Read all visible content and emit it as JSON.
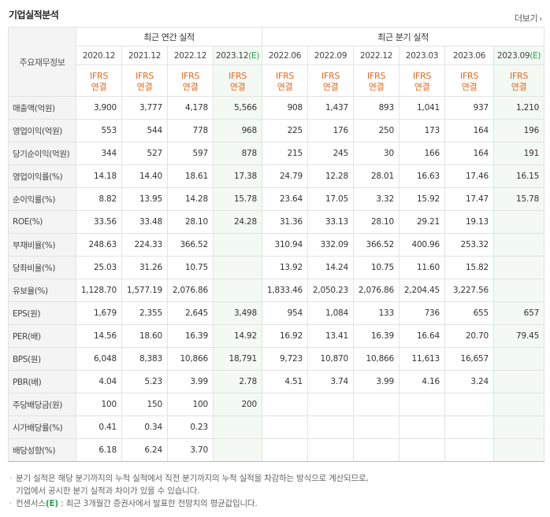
{
  "header": {
    "title": "기업실적분석",
    "more_label": "더보기"
  },
  "table": {
    "corner_label": "주요재무정보",
    "groups": {
      "annual": "최근 연간 실적",
      "quarterly": "최근 분기 실적"
    },
    "periods": [
      {
        "label": "2020.12",
        "est": ""
      },
      {
        "label": "2021.12",
        "est": ""
      },
      {
        "label": "2022.12",
        "est": ""
      },
      {
        "label": "2023.12",
        "est": "(E)"
      },
      {
        "label": "2022.06",
        "est": ""
      },
      {
        "label": "2022.09",
        "est": ""
      },
      {
        "label": "2022.12",
        "est": ""
      },
      {
        "label": "2023.03",
        "est": ""
      },
      {
        "label": "2023.06",
        "est": ""
      },
      {
        "label": "2023.09",
        "est": "(E)"
      }
    ],
    "standard": {
      "line1": "IFRS",
      "line2": "연결"
    },
    "rows": [
      {
        "label": "매출액(억원)",
        "values": [
          "3,900",
          "3,777",
          "4,178",
          "5,566",
          "908",
          "1,437",
          "893",
          "1,041",
          "937",
          "1,210"
        ]
      },
      {
        "label": "영업이익(억원)",
        "values": [
          "553",
          "544",
          "778",
          "968",
          "225",
          "176",
          "250",
          "173",
          "164",
          "196"
        ]
      },
      {
        "label": "당기순이익(억원)",
        "values": [
          "344",
          "527",
          "597",
          "878",
          "215",
          "245",
          "30",
          "166",
          "164",
          "191"
        ]
      },
      {
        "label": "영업이익률(%)",
        "values": [
          "14.18",
          "14.40",
          "18.61",
          "17.38",
          "24.79",
          "12.28",
          "28.01",
          "16.63",
          "17.46",
          "16.15"
        ]
      },
      {
        "label": "순이익률(%)",
        "values": [
          "8.82",
          "13.95",
          "14.28",
          "15.78",
          "23.64",
          "17.05",
          "3.32",
          "15.92",
          "17.47",
          "15.78"
        ]
      },
      {
        "label": "ROE(%)",
        "values": [
          "33.56",
          "33.48",
          "28.10",
          "24.28",
          "31.36",
          "33.13",
          "28.10",
          "29.21",
          "19.13",
          ""
        ]
      },
      {
        "label": "부채비율(%)",
        "values": [
          "248.63",
          "224.33",
          "366.52",
          "",
          "310.94",
          "332.09",
          "366.52",
          "400.96",
          "253.32",
          ""
        ]
      },
      {
        "label": "당좌비율(%)",
        "values": [
          "25.03",
          "31.26",
          "10.75",
          "",
          "13.92",
          "14.24",
          "10.75",
          "11.60",
          "15.82",
          ""
        ]
      },
      {
        "label": "유보율(%)",
        "values": [
          "1,128.70",
          "1,577.19",
          "2,076.86",
          "",
          "1,833.46",
          "2,050.23",
          "2,076.86",
          "2,204.45",
          "3,227.56",
          ""
        ]
      },
      {
        "label": "EPS(원)",
        "values": [
          "1,679",
          "2,355",
          "2,645",
          "3,498",
          "954",
          "1,084",
          "133",
          "736",
          "655",
          "657"
        ]
      },
      {
        "label": "PER(배)",
        "values": [
          "14.56",
          "18.60",
          "16.39",
          "14.92",
          "16.92",
          "13.41",
          "16.39",
          "16.64",
          "20.70",
          "79.45"
        ]
      },
      {
        "label": "BPS(원)",
        "values": [
          "6,048",
          "8,383",
          "10,866",
          "18,791",
          "9,723",
          "10,870",
          "10,866",
          "11,613",
          "16,657",
          ""
        ]
      },
      {
        "label": "PBR(배)",
        "values": [
          "4.04",
          "5.23",
          "3.99",
          "2.78",
          "4.51",
          "3.74",
          "3.99",
          "4.16",
          "3.24",
          ""
        ]
      },
      {
        "label": "주당배당금(원)",
        "values": [
          "100",
          "150",
          "100",
          "200",
          "",
          "",
          "",
          "",
          "",
          ""
        ]
      },
      {
        "label": "시가배당률(%)",
        "values": [
          "0.41",
          "0.34",
          "0.23",
          "",
          "",
          "",
          "",
          "",
          "",
          ""
        ]
      },
      {
        "label": "배당성향(%)",
        "values": [
          "6.18",
          "6.24",
          "3.70",
          "",
          "",
          "",
          "",
          "",
          "",
          ""
        ]
      }
    ]
  },
  "notes": {
    "line1": "분기 실적은 해당 분기까지의 누적 실적에서 직전 분기까지의 누적 실적을 차감하는 방식으로 계산되므로,",
    "line2": "기업에서 공시한 분기 실적과 차이가 있을 수 있습니다.",
    "line3_prefix": "컨센서스",
    "line3_mark": "(E)",
    "line3_rest": " : 최근 3개월간 증권사에서 발표한 전망치의 평균값입니다."
  }
}
